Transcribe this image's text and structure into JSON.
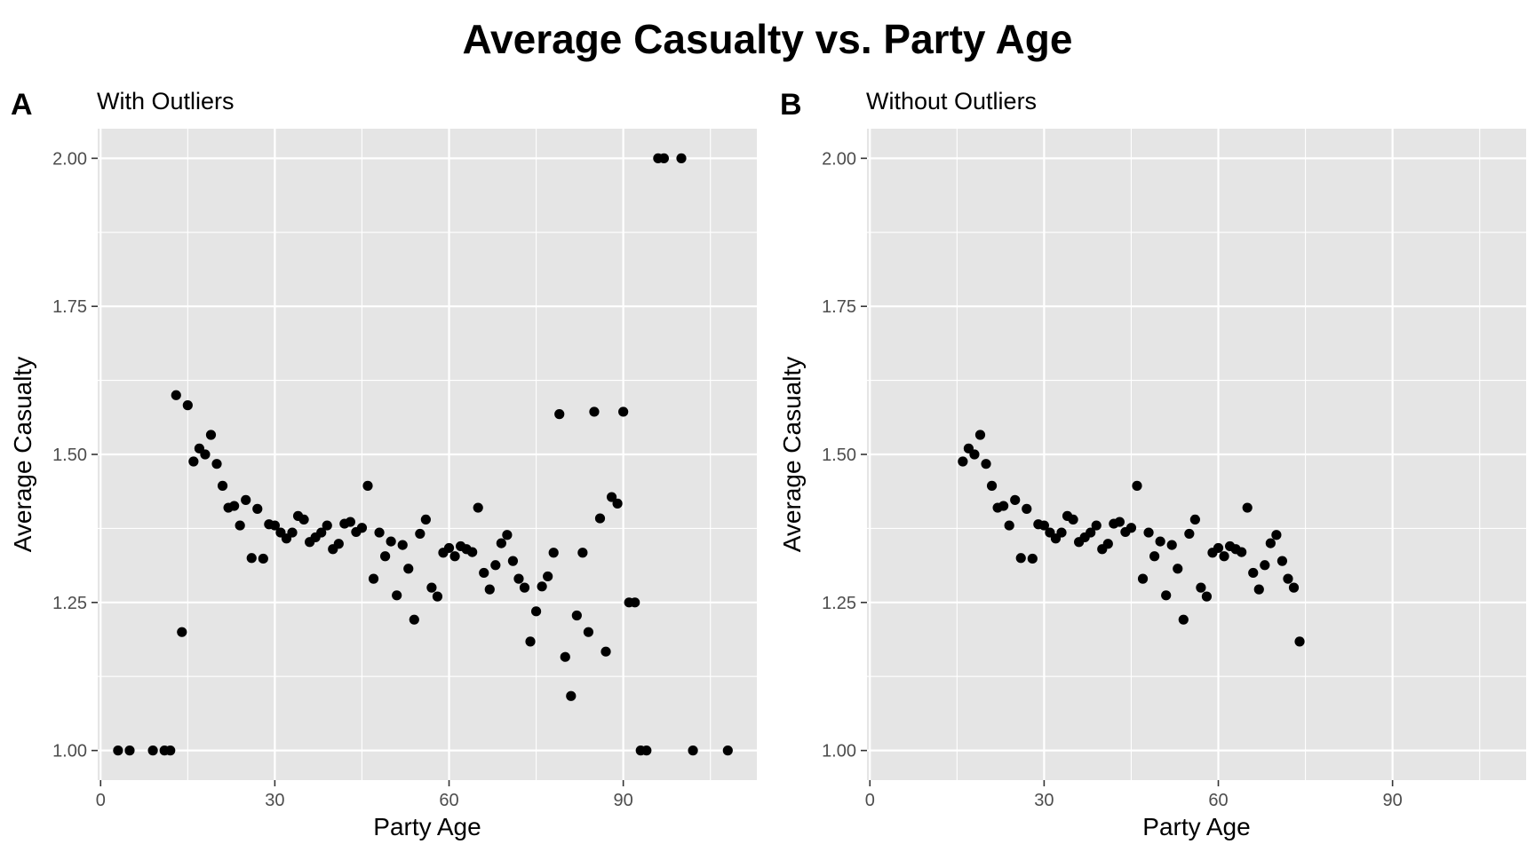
{
  "title": "Average Casualty vs. Party Age",
  "chart_data": [
    {
      "type": "scatter",
      "tag": "A",
      "subtitle": "With Outliers",
      "xlabel": "Party Age",
      "ylabel": "Average Casualty",
      "xlim": [
        -0.5,
        113
      ],
      "ylim": [
        0.95,
        2.05
      ],
      "xticks": [
        0,
        30,
        60,
        90
      ],
      "yticks": [
        1.0,
        1.25,
        1.5,
        1.75,
        2.0
      ],
      "xtick_labels": [
        "0",
        "30",
        "60",
        "90"
      ],
      "ytick_labels": [
        "1.00",
        "1.25",
        "1.50",
        "1.75",
        "2.00"
      ],
      "grid": true,
      "points": [
        [
          3,
          1.0
        ],
        [
          5,
          1.0
        ],
        [
          9,
          1.0
        ],
        [
          11,
          1.0
        ],
        [
          12,
          1.0
        ],
        [
          13,
          1.6
        ],
        [
          14,
          1.2
        ],
        [
          15,
          1.583
        ],
        [
          16,
          1.488
        ],
        [
          17,
          1.51
        ],
        [
          18,
          1.5
        ],
        [
          19,
          1.533
        ],
        [
          20,
          1.484
        ],
        [
          21,
          1.447
        ],
        [
          22,
          1.41
        ],
        [
          23,
          1.413
        ],
        [
          24,
          1.38
        ],
        [
          25,
          1.423
        ],
        [
          26,
          1.325
        ],
        [
          27,
          1.408
        ],
        [
          28,
          1.324
        ],
        [
          29,
          1.382
        ],
        [
          30,
          1.38
        ],
        [
          31,
          1.368
        ],
        [
          32,
          1.358
        ],
        [
          33,
          1.368
        ],
        [
          34,
          1.396
        ],
        [
          35,
          1.39
        ],
        [
          36,
          1.352
        ],
        [
          37,
          1.36
        ],
        [
          38,
          1.368
        ],
        [
          39,
          1.38
        ],
        [
          40,
          1.34
        ],
        [
          41,
          1.349
        ],
        [
          42,
          1.383
        ],
        [
          43,
          1.386
        ],
        [
          44,
          1.369
        ],
        [
          45,
          1.376
        ],
        [
          46,
          1.447
        ],
        [
          47,
          1.29
        ],
        [
          48,
          1.368
        ],
        [
          49,
          1.328
        ],
        [
          50,
          1.353
        ],
        [
          51,
          1.262
        ],
        [
          52,
          1.347
        ],
        [
          53,
          1.307
        ],
        [
          54,
          1.221
        ],
        [
          55,
          1.366
        ],
        [
          56,
          1.39
        ],
        [
          57,
          1.275
        ],
        [
          58,
          1.26
        ],
        [
          59,
          1.334
        ],
        [
          60,
          1.342
        ],
        [
          61,
          1.328
        ],
        [
          62,
          1.345
        ],
        [
          63,
          1.34
        ],
        [
          64,
          1.335
        ],
        [
          65,
          1.41
        ],
        [
          66,
          1.3
        ],
        [
          67,
          1.272
        ],
        [
          68,
          1.313
        ],
        [
          69,
          1.35
        ],
        [
          70,
          1.364
        ],
        [
          71,
          1.32
        ],
        [
          72,
          1.29
        ],
        [
          73,
          1.275
        ],
        [
          74,
          1.184
        ],
        [
          75,
          1.235
        ],
        [
          76,
          1.277
        ],
        [
          77,
          1.294
        ],
        [
          78,
          1.334
        ],
        [
          79,
          1.568
        ],
        [
          80,
          1.158
        ],
        [
          81,
          1.092
        ],
        [
          82,
          1.228
        ],
        [
          83,
          1.334
        ],
        [
          84,
          1.2
        ],
        [
          85,
          1.572
        ],
        [
          86,
          1.392
        ],
        [
          87,
          1.167
        ],
        [
          88,
          1.428
        ],
        [
          89,
          1.417
        ],
        [
          90,
          1.572
        ],
        [
          91,
          1.25
        ],
        [
          92,
          1.25
        ],
        [
          93,
          1.0
        ],
        [
          94,
          1.0
        ],
        [
          96,
          2.0
        ],
        [
          97,
          2.0
        ],
        [
          100,
          2.0
        ],
        [
          102,
          1.0
        ],
        [
          108,
          1.0
        ]
      ]
    },
    {
      "type": "scatter",
      "tag": "B",
      "subtitle": "Without Outliers",
      "xlabel": "Party Age",
      "ylabel": "Average Casualty",
      "xlim": [
        -0.5,
        113
      ],
      "ylim": [
        0.95,
        2.05
      ],
      "xticks": [
        0,
        30,
        60,
        90
      ],
      "yticks": [
        1.0,
        1.25,
        1.5,
        1.75,
        2.0
      ],
      "xtick_labels": [
        "0",
        "30",
        "60",
        "90"
      ],
      "ytick_labels": [
        "1.00",
        "1.25",
        "1.50",
        "1.75",
        "2.00"
      ],
      "grid": true,
      "points": [
        [
          16,
          1.488
        ],
        [
          17,
          1.51
        ],
        [
          18,
          1.5
        ],
        [
          19,
          1.533
        ],
        [
          20,
          1.484
        ],
        [
          21,
          1.447
        ],
        [
          22,
          1.41
        ],
        [
          23,
          1.413
        ],
        [
          24,
          1.38
        ],
        [
          25,
          1.423
        ],
        [
          26,
          1.325
        ],
        [
          27,
          1.408
        ],
        [
          28,
          1.324
        ],
        [
          29,
          1.382
        ],
        [
          30,
          1.38
        ],
        [
          31,
          1.368
        ],
        [
          32,
          1.358
        ],
        [
          33,
          1.368
        ],
        [
          34,
          1.396
        ],
        [
          35,
          1.39
        ],
        [
          36,
          1.352
        ],
        [
          37,
          1.36
        ],
        [
          38,
          1.368
        ],
        [
          39,
          1.38
        ],
        [
          40,
          1.34
        ],
        [
          41,
          1.349
        ],
        [
          42,
          1.383
        ],
        [
          43,
          1.386
        ],
        [
          44,
          1.369
        ],
        [
          45,
          1.376
        ],
        [
          46,
          1.447
        ],
        [
          47,
          1.29
        ],
        [
          48,
          1.368
        ],
        [
          49,
          1.328
        ],
        [
          50,
          1.353
        ],
        [
          51,
          1.262
        ],
        [
          52,
          1.347
        ],
        [
          53,
          1.307
        ],
        [
          54,
          1.221
        ],
        [
          55,
          1.366
        ],
        [
          56,
          1.39
        ],
        [
          57,
          1.275
        ],
        [
          58,
          1.26
        ],
        [
          59,
          1.334
        ],
        [
          60,
          1.342
        ],
        [
          61,
          1.328
        ],
        [
          62,
          1.345
        ],
        [
          63,
          1.34
        ],
        [
          64,
          1.335
        ],
        [
          65,
          1.41
        ],
        [
          66,
          1.3
        ],
        [
          67,
          1.272
        ],
        [
          68,
          1.313
        ],
        [
          69,
          1.35
        ],
        [
          70,
          1.364
        ],
        [
          71,
          1.32
        ],
        [
          72,
          1.29
        ],
        [
          73,
          1.275
        ],
        [
          74,
          1.184
        ]
      ]
    }
  ]
}
